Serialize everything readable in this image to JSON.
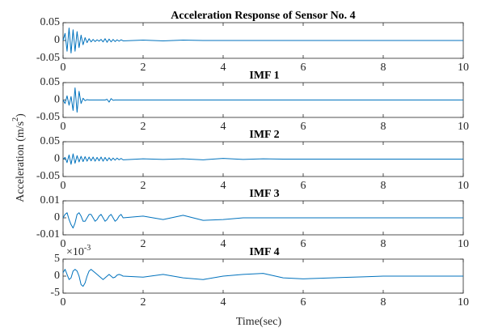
{
  "figure": {
    "ylabel": {
      "text": "Acceleration (m/s",
      "superscript": "2",
      "suffix": ")"
    },
    "xlabel": "Time(sec)"
  },
  "chart_data": [
    {
      "type": "line",
      "title": "Acceleration Response of Sensor No. 4",
      "color": "#0072bd",
      "x": [
        0,
        0.05,
        0.1,
        0.15,
        0.2,
        0.25,
        0.3,
        0.35,
        0.4,
        0.45,
        0.5,
        0.55,
        0.6,
        0.65,
        0.7,
        0.75,
        0.8,
        0.85,
        0.9,
        0.95,
        1,
        1.05,
        1.1,
        1.15,
        1.2,
        1.25,
        1.3,
        1.35,
        1.4,
        1.45,
        1.5,
        2,
        2.5,
        3,
        3.5,
        4,
        4.5,
        5,
        5.5,
        6,
        6.5,
        7,
        7.5,
        8,
        8.5,
        9,
        9.5,
        10
      ],
      "values": [
        0,
        0.02,
        -0.03,
        0.035,
        -0.035,
        0.03,
        -0.03,
        0.025,
        -0.02,
        0.015,
        -0.012,
        0.008,
        -0.006,
        0.005,
        -0.004,
        0.003,
        -0.003,
        0.002,
        -0.002,
        0.003,
        -0.004,
        0.005,
        -0.005,
        0.004,
        -0.004,
        0.003,
        -0.003,
        0.002,
        -0.002,
        0.002,
        -0.001,
        0.001,
        -0.001,
        0.001,
        0,
        0,
        0,
        0,
        0,
        0,
        0,
        0,
        0,
        0,
        0,
        0,
        0,
        0
      ],
      "xlim": [
        0,
        10
      ],
      "xticks": [
        0,
        2,
        4,
        6,
        8,
        10
      ],
      "ylim": [
        -0.05,
        0.05
      ],
      "yticks": [
        -0.05,
        0,
        0.05
      ]
    },
    {
      "type": "line",
      "title": "IMF 1",
      "color": "#0072bd",
      "x": [
        0,
        0.05,
        0.1,
        0.15,
        0.2,
        0.25,
        0.3,
        0.35,
        0.4,
        0.45,
        0.5,
        0.55,
        0.6,
        0.65,
        0.7,
        0.75,
        0.8,
        0.85,
        0.9,
        0.95,
        1,
        1.05,
        1.1,
        1.15,
        1.2,
        1.25,
        1.3,
        1.35,
        1.4,
        1.45,
        1.5,
        2,
        2.5,
        3,
        3.5,
        4,
        4.5,
        5,
        5.5,
        6,
        6.5,
        7,
        7.5,
        8,
        8.5,
        9,
        9.5,
        10
      ],
      "values": [
        0,
        -0.01,
        0.012,
        -0.015,
        0.01,
        -0.03,
        0.035,
        -0.035,
        0.025,
        -0.01,
        0.005,
        -0.002,
        0.001,
        0,
        0,
        0,
        0,
        0,
        0,
        0,
        0,
        0,
        0.002,
        -0.006,
        0.004,
        -0.001,
        0,
        0,
        0,
        0,
        0,
        0,
        0,
        0,
        0,
        0,
        0,
        0,
        0,
        0,
        0,
        0,
        0,
        0,
        0,
        0,
        0,
        0
      ],
      "xlim": [
        0,
        10
      ],
      "xticks": [
        0,
        2,
        4,
        6,
        8,
        10
      ],
      "ylim": [
        -0.05,
        0.05
      ],
      "yticks": [
        -0.05,
        0,
        0.05
      ]
    },
    {
      "type": "line",
      "title": "IMF 2",
      "color": "#0072bd",
      "x": [
        0,
        0.05,
        0.1,
        0.15,
        0.2,
        0.25,
        0.3,
        0.35,
        0.4,
        0.45,
        0.5,
        0.55,
        0.6,
        0.65,
        0.7,
        0.75,
        0.8,
        0.85,
        0.9,
        0.95,
        1,
        1.05,
        1.1,
        1.15,
        1.2,
        1.25,
        1.3,
        1.35,
        1.4,
        1.45,
        1.5,
        2,
        2.5,
        3,
        3.5,
        4,
        4.5,
        5,
        5.5,
        6,
        6.5,
        7,
        7.5,
        8,
        8.5,
        9,
        9.5,
        10
      ],
      "values": [
        0,
        0.005,
        -0.01,
        0.012,
        -0.015,
        0.015,
        -0.012,
        0.01,
        -0.008,
        0.008,
        -0.007,
        0.007,
        -0.006,
        0.006,
        -0.005,
        0.006,
        -0.006,
        0.005,
        -0.005,
        0.006,
        -0.006,
        0.005,
        -0.005,
        0.004,
        -0.004,
        0.003,
        -0.003,
        0.003,
        -0.002,
        0.002,
        -0.002,
        0.001,
        -0.001,
        0.001,
        -0.002,
        0.002,
        -0.001,
        0.001,
        0,
        0,
        0,
        0,
        0,
        0,
        0,
        0,
        0,
        0
      ],
      "xlim": [
        0,
        10
      ],
      "xticks": [
        0,
        2,
        4,
        6,
        8,
        10
      ],
      "ylim": [
        -0.05,
        0.05
      ],
      "yticks": [
        -0.05,
        0,
        0.05
      ]
    },
    {
      "type": "line",
      "title": "IMF 3",
      "color": "#0072bd",
      "x": [
        0,
        0.05,
        0.1,
        0.15,
        0.2,
        0.25,
        0.3,
        0.35,
        0.4,
        0.45,
        0.5,
        0.55,
        0.6,
        0.65,
        0.7,
        0.75,
        0.8,
        0.85,
        0.9,
        0.95,
        1,
        1.05,
        1.1,
        1.15,
        1.2,
        1.25,
        1.3,
        1.35,
        1.4,
        1.45,
        1.5,
        2,
        2.5,
        3,
        3.5,
        4,
        4.5,
        5,
        5.5,
        6,
        6.5,
        7,
        7.5,
        8,
        8.5,
        9,
        9.5,
        10
      ],
      "values": [
        0,
        0.002,
        0.003,
        -0.001,
        -0.004,
        -0.006,
        -0.003,
        0.002,
        0.003,
        0.001,
        -0.002,
        -0.002,
        0,
        0.002,
        0.002,
        0,
        -0.002,
        -0.001,
        0.001,
        0.002,
        0,
        -0.002,
        -0.001,
        0.001,
        0.002,
        0,
        -0.002,
        -0.001,
        0.001,
        0.002,
        0,
        0.001,
        -0.001,
        0.0015,
        -0.0015,
        -0.001,
        0,
        0,
        0,
        0,
        0,
        0,
        0,
        0,
        0,
        0,
        0,
        0
      ],
      "xlim": [
        0,
        10
      ],
      "xticks": [
        0,
        2,
        4,
        6,
        8,
        10
      ],
      "ylim": [
        -0.01,
        0.01
      ],
      "yticks": [
        -0.01,
        0,
        0.01
      ]
    },
    {
      "type": "line",
      "title": "IMF 4",
      "color": "#0072bd",
      "y_offset": {
        "base": "×10",
        "exponent": "-3"
      },
      "x": [
        0,
        0.05,
        0.1,
        0.15,
        0.2,
        0.25,
        0.3,
        0.35,
        0.4,
        0.45,
        0.5,
        0.55,
        0.6,
        0.65,
        0.7,
        0.75,
        0.8,
        0.85,
        0.9,
        0.95,
        1,
        1.05,
        1.1,
        1.15,
        1.2,
        1.25,
        1.3,
        1.35,
        1.4,
        1.45,
        1.5,
        2,
        2.5,
        3,
        3.5,
        4,
        4.5,
        5,
        5.5,
        6,
        6.5,
        7,
        7.5,
        8,
        8.5,
        9,
        9.5,
        10
      ],
      "values": [
        0.001,
        0.002,
        0.0005,
        -0.001,
        -0.0005,
        0.0015,
        0.002,
        0.0015,
        0,
        -0.0025,
        -0.003,
        -0.002,
        0,
        0.0015,
        0.002,
        0.0015,
        0.001,
        0.0005,
        0,
        -0.0005,
        -0.001,
        -0.0005,
        0,
        0.0005,
        0,
        -0.0005,
        -0.0003,
        0.0003,
        0.0005,
        0.0003,
        0,
        -0.0003,
        0.0005,
        -0.0005,
        -0.001,
        0,
        0.0005,
        0.0008,
        -0.0005,
        -0.0008,
        -0.0006,
        -0.0004,
        -0.0002,
        0,
        0,
        0,
        0,
        0
      ],
      "xlim": [
        0,
        10
      ],
      "xticks": [
        0,
        2,
        4,
        6,
        8,
        10
      ],
      "ylim": [
        -0.005,
        0.005
      ],
      "yticks": [
        {
          "value": -0.005,
          "label": "-5"
        },
        0,
        {
          "value": 0.005,
          "label": "5"
        }
      ]
    }
  ]
}
